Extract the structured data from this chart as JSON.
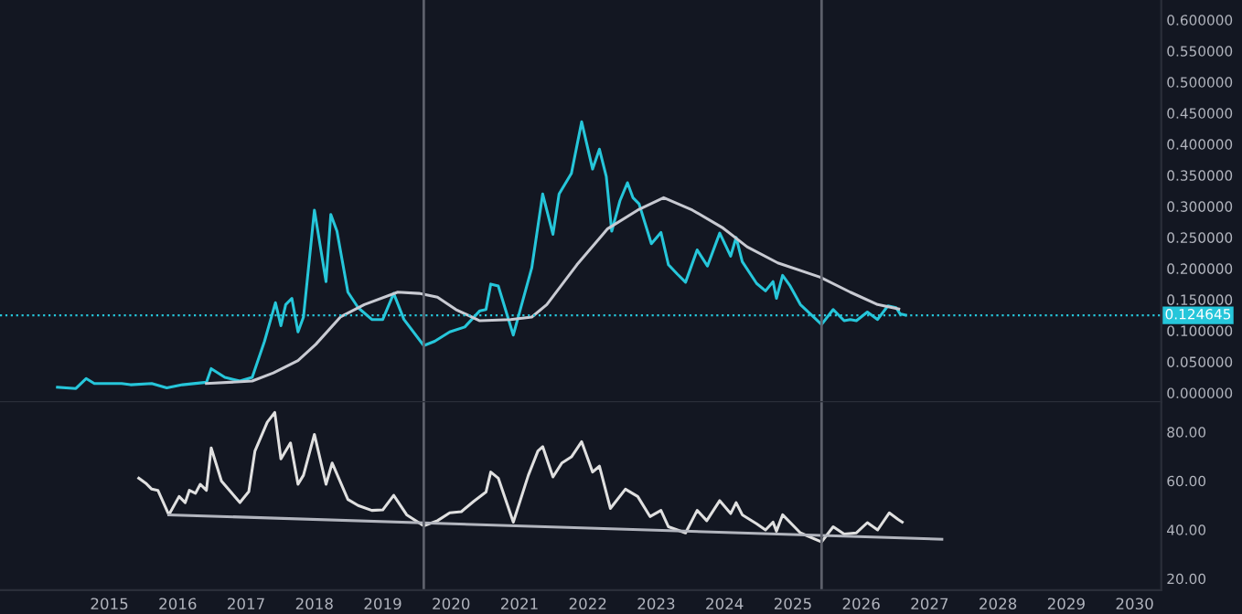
{
  "chart_data": [
    {
      "type": "line",
      "tick_labels": "y",
      "grid": false,
      "legend": false,
      "xlim": [
        2013.4,
        2030.39
      ],
      "ylim": [
        -0.015,
        0.632
      ],
      "xticks": [
        2015,
        2016,
        2017,
        2018,
        2019,
        2020,
        2021,
        2022,
        2023,
        2024,
        2025,
        2026,
        2027,
        2028,
        2029,
        2030
      ],
      "yticks": [
        {
          "value": 0,
          "label": "0.000000"
        },
        {
          "value": 0.05,
          "label": "0.050000"
        },
        {
          "value": 0.1,
          "label": "0.100000"
        },
        {
          "value": 0.15,
          "label": "0.150000"
        },
        {
          "value": 0.2,
          "label": "0.200000"
        },
        {
          "value": 0.25,
          "label": "0.250000"
        },
        {
          "value": 0.3,
          "label": "0.300000"
        },
        {
          "value": 0.35,
          "label": "0.350000"
        },
        {
          "value": 0.4,
          "label": "0.400000"
        },
        {
          "value": 0.45,
          "label": "0.450000"
        },
        {
          "value": 0.5,
          "label": "0.500000"
        },
        {
          "value": 0.55,
          "label": "0.550000"
        },
        {
          "value": 0.6,
          "label": "0.600000"
        }
      ],
      "ref_lines": [
        {
          "axis": "x",
          "value": 2019.6,
          "color": "#5d606b",
          "line_style": "solid"
        },
        {
          "axis": "x",
          "value": 2025.42,
          "color": "#5d606b",
          "line_style": "solid"
        },
        {
          "axis": "y",
          "value": 0.124645,
          "label": "0.124645",
          "color": "#26c6da",
          "line_style": "dotted"
        }
      ],
      "series": [
        {
          "color": "#26c6da",
          "x": [
            2014.24,
            2014.51,
            2014.66,
            2014.78,
            2015.18,
            2015.31,
            2015.62,
            2015.84,
            2016.07,
            2016.42,
            2016.49,
            2016.69,
            2016.91,
            2017.09,
            2017.27,
            2017.43,
            2017.51,
            2017.58,
            2017.67,
            2017.76,
            2017.84,
            2018.0,
            2018.17,
            2018.24,
            2018.33,
            2018.49,
            2018.64,
            2018.84,
            2019.0,
            2019.16,
            2019.31,
            2019.6,
            2019.76,
            2019.98,
            2020.2,
            2020.42,
            2020.51,
            2020.58,
            2020.69,
            2020.91,
            2021.18,
            2021.34,
            2021.49,
            2021.58,
            2021.76,
            2021.91,
            2022.07,
            2022.17,
            2022.27,
            2022.35,
            2022.47,
            2022.58,
            2022.66,
            2022.75,
            2022.93,
            2023.07,
            2023.18,
            2023.31,
            2023.43,
            2023.6,
            2023.75,
            2023.93,
            2024.09,
            2024.17,
            2024.26,
            2024.47,
            2024.6,
            2024.71,
            2024.76,
            2024.85,
            2024.96,
            2025.11,
            2025.42,
            2025.59,
            2025.75,
            2025.84,
            2025.93,
            2026.09,
            2026.24,
            2026.39,
            2026.51,
            2026.57,
            2026.65
          ],
          "values": [
            0.009,
            0.007,
            0.023,
            0.015,
            0.015,
            0.013,
            0.015,
            0.008,
            0.013,
            0.017,
            0.039,
            0.025,
            0.019,
            0.025,
            0.083,
            0.145,
            0.108,
            0.142,
            0.152,
            0.098,
            0.122,
            0.294,
            0.179,
            0.287,
            0.26,
            0.162,
            0.137,
            0.118,
            0.118,
            0.16,
            0.118,
            0.076,
            0.083,
            0.098,
            0.106,
            0.132,
            0.134,
            0.175,
            0.172,
            0.093,
            0.201,
            0.32,
            0.255,
            0.32,
            0.353,
            0.436,
            0.36,
            0.392,
            0.348,
            0.26,
            0.309,
            0.338,
            0.314,
            0.304,
            0.24,
            0.258,
            0.206,
            0.191,
            0.178,
            0.23,
            0.204,
            0.257,
            0.22,
            0.25,
            0.211,
            0.176,
            0.164,
            0.179,
            0.152,
            0.189,
            0.172,
            0.142,
            0.11,
            0.134,
            0.116,
            0.118,
            0.116,
            0.13,
            0.118,
            0.14,
            0.137,
            0.127,
            0.125
          ]
        },
        {
          "color": "#c8cad2",
          "x": [
            2016.42,
            2017.09,
            2017.4,
            2017.76,
            2018.02,
            2018.38,
            2018.73,
            2019.22,
            2019.53,
            2019.8,
            2020.07,
            2020.42,
            2020.87,
            2021.18,
            2021.4,
            2021.84,
            2022.29,
            2022.73,
            2023.11,
            2023.53,
            2023.98,
            2024.33,
            2024.78,
            2025.4,
            2025.84,
            2026.24,
            2026.55
          ],
          "values": [
            0.015,
            0.019,
            0.032,
            0.052,
            0.078,
            0.122,
            0.142,
            0.162,
            0.16,
            0.154,
            0.134,
            0.116,
            0.118,
            0.122,
            0.142,
            0.206,
            0.264,
            0.294,
            0.314,
            0.294,
            0.265,
            0.235,
            0.209,
            0.186,
            0.162,
            0.142,
            0.135
          ]
        }
      ]
    },
    {
      "type": "line",
      "grid": false,
      "legend": false,
      "xlim": [
        2013.4,
        2030.39
      ],
      "ylim": [
        15.3,
        92.2
      ],
      "xticks": [
        2015,
        2016,
        2017,
        2018,
        2019,
        2020,
        2021,
        2022,
        2023,
        2024,
        2025,
        2026,
        2027,
        2028,
        2029,
        2030
      ],
      "yticks": [
        {
          "value": 20,
          "label": "20.00"
        },
        {
          "value": 40,
          "label": "40.00"
        },
        {
          "value": 60,
          "label": "60.00"
        },
        {
          "value": 80,
          "label": "80.00"
        }
      ],
      "ref_lines": [
        {
          "axis": "x",
          "value": 2019.6,
          "color": "#5d606b",
          "line_style": "solid"
        },
        {
          "axis": "x",
          "value": 2025.42,
          "color": "#5d606b",
          "line_style": "solid"
        }
      ],
      "series": [
        {
          "color": "#e0e0e0",
          "x": [
            2015.43,
            2015.53,
            2015.62,
            2015.71,
            2015.87,
            2016.02,
            2016.11,
            2016.17,
            2016.26,
            2016.33,
            2016.42,
            2016.49,
            2016.64,
            2016.91,
            2017.04,
            2017.13,
            2017.31,
            2017.42,
            2017.51,
            2017.65,
            2017.76,
            2017.84,
            2018.0,
            2018.17,
            2018.26,
            2018.49,
            2018.64,
            2018.84,
            2019.0,
            2019.16,
            2019.35,
            2019.6,
            2019.8,
            2019.98,
            2020.15,
            2020.33,
            2020.51,
            2020.58,
            2020.69,
            2020.91,
            2021.13,
            2021.27,
            2021.34,
            2021.49,
            2021.62,
            2021.76,
            2021.91,
            2022.07,
            2022.17,
            2022.33,
            2022.55,
            2022.73,
            2022.91,
            2023.07,
            2023.18,
            2023.43,
            2023.6,
            2023.74,
            2023.93,
            2024.09,
            2024.17,
            2024.26,
            2024.47,
            2024.6,
            2024.71,
            2024.76,
            2024.85,
            2025.11,
            2025.42,
            2025.59,
            2025.75,
            2025.93,
            2026.09,
            2026.24,
            2026.41,
            2026.54,
            2026.6
          ],
          "values": [
            61.1,
            59.1,
            56.6,
            56.1,
            46.1,
            53.6,
            51.1,
            56.1,
            54.9,
            58.6,
            56.1,
            73.5,
            59.9,
            51.1,
            55.6,
            72.2,
            84.0,
            88.0,
            69.0,
            75.5,
            58.6,
            62.3,
            79.0,
            58.6,
            67.3,
            52.4,
            49.9,
            47.9,
            48.1,
            54.1,
            46.1,
            41.6,
            43.7,
            46.9,
            47.4,
            51.6,
            55.4,
            63.6,
            61.1,
            43.1,
            62.3,
            72.2,
            74.0,
            61.6,
            67.3,
            69.8,
            76.0,
            63.6,
            66.0,
            48.7,
            56.6,
            53.6,
            45.4,
            47.9,
            41.2,
            38.7,
            47.9,
            43.7,
            51.9,
            46.6,
            51.1,
            46.1,
            42.4,
            39.9,
            43.1,
            39.4,
            46.1,
            38.7,
            35.0,
            41.2,
            38.2,
            38.7,
            42.9,
            39.9,
            46.9,
            44.2,
            43.1
          ]
        },
        {
          "color": "#b2b5be",
          "x": [
            2015.87,
            2027.18
          ],
          "values": [
            46.1,
            36.1
          ]
        }
      ]
    }
  ]
}
